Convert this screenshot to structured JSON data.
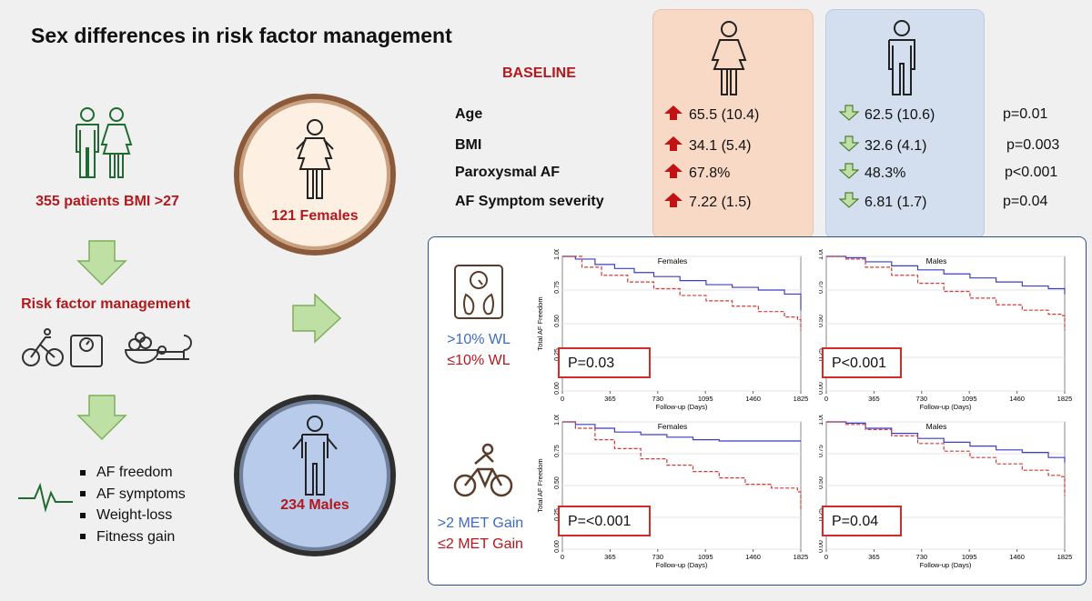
{
  "title": "Sex differences in risk factor management",
  "baseline_label": "BASELINE",
  "left_flow": {
    "patients": "355 patients BMI >27",
    "rfm": "Risk factor management",
    "outcomes": [
      "AF freedom",
      "AF symptoms",
      "Weight-loss",
      "Fitness gain"
    ]
  },
  "groups": {
    "females": "121 Females",
    "males": "234 Males"
  },
  "baseline_rows": [
    {
      "label": "Age",
      "female": "65.5 (10.4)",
      "male": "62.5 (10.6)",
      "p": "p=0.01"
    },
    {
      "label": "BMI",
      "female": "34.1 (5.4)",
      "male": "32.6 (4.1)",
      "p": "p=0.003"
    },
    {
      "label": "Paroxysmal AF",
      "female": "67.8%",
      "male": "48.3%",
      "p": "p<0.001"
    },
    {
      "label": "AF Symptom severity",
      "female": "7.22 (1.5)",
      "male": "6.81 (1.7)",
      "p": "p=0.04"
    }
  ],
  "legend_wl": {
    "high": ">10% WL",
    "low": "≤10% WL"
  },
  "legend_met": {
    "high": ">2 MET Gain",
    "low": "≤2 MET Gain"
  },
  "colors": {
    "accent_red": "#b3181d",
    "accent_blue": "#3d6cbf",
    "female_panel": "#f8d9c6",
    "male_panel": "#d3deef",
    "arrow_green": "#bfe0a4"
  },
  "chart_data": [
    {
      "type": "line",
      "title": "Females",
      "xlabel": "Follow-up (Days)",
      "ylabel": "Total AF Freedom",
      "x_ticks": [
        0,
        365,
        730,
        1095,
        1460,
        1825
      ],
      "y_ticks": [
        "0.00",
        "0.25",
        "0.50",
        "0.75",
        "1.00"
      ],
      "xlim": [
        0,
        1825
      ],
      "ylim": [
        0,
        1
      ],
      "annotation": "P=0.03",
      "series": [
        {
          "name": ">10% WL",
          "x": [
            0,
            100,
            250,
            400,
            550,
            700,
            900,
            1100,
            1300,
            1500,
            1700,
            1800,
            1825
          ],
          "y": [
            1.0,
            0.98,
            0.94,
            0.91,
            0.88,
            0.85,
            0.82,
            0.79,
            0.77,
            0.75,
            0.72,
            0.72,
            0.6
          ]
        },
        {
          "name": "≤10% WL",
          "x": [
            0,
            150,
            300,
            500,
            700,
            900,
            1100,
            1300,
            1500,
            1700,
            1800,
            1825
          ],
          "y": [
            1.0,
            0.92,
            0.86,
            0.81,
            0.76,
            0.71,
            0.67,
            0.63,
            0.59,
            0.55,
            0.53,
            0.45
          ]
        }
      ]
    },
    {
      "type": "line",
      "title": "Males",
      "xlabel": "Follow-up (Days)",
      "ylabel": "",
      "x_ticks": [
        0,
        365,
        730,
        1095,
        1460,
        1825
      ],
      "y_ticks": [
        "0.00",
        "0.25",
        "0.50",
        "0.75",
        "1.00"
      ],
      "xlim": [
        0,
        1825
      ],
      "ylim": [
        0,
        1
      ],
      "annotation": "P<0.001",
      "series": [
        {
          "name": ">10% WL",
          "x": [
            0,
            150,
            300,
            500,
            700,
            900,
            1100,
            1300,
            1500,
            1700,
            1800,
            1825
          ],
          "y": [
            1.0,
            0.99,
            0.96,
            0.93,
            0.9,
            0.87,
            0.84,
            0.81,
            0.78,
            0.76,
            0.76,
            0.72
          ]
        },
        {
          "name": "≤10% WL",
          "x": [
            0,
            150,
            300,
            500,
            700,
            900,
            1100,
            1300,
            1500,
            1700,
            1800,
            1825
          ],
          "y": [
            1.0,
            0.98,
            0.92,
            0.86,
            0.8,
            0.74,
            0.69,
            0.64,
            0.6,
            0.57,
            0.56,
            0.45
          ]
        }
      ]
    },
    {
      "type": "line",
      "title": "Females",
      "xlabel": "Follow-up (Days)",
      "ylabel": "Total AF Freedom",
      "x_ticks": [
        0,
        365,
        730,
        1095,
        1460,
        1825
      ],
      "y_ticks": [
        "0.00",
        "0.25",
        "0.50",
        "0.75",
        "1.00"
      ],
      "xlim": [
        0,
        1825
      ],
      "ylim": [
        0,
        1
      ],
      "annotation": "P=<0.001",
      "series": [
        {
          "name": ">2 MET Gain",
          "x": [
            0,
            100,
            250,
            400,
            600,
            800,
            1000,
            1200,
            1825
          ],
          "y": [
            1.0,
            0.98,
            0.95,
            0.92,
            0.9,
            0.88,
            0.86,
            0.85,
            0.85
          ]
        },
        {
          "name": "≤2 MET Gain",
          "x": [
            0,
            100,
            250,
            400,
            600,
            800,
            1000,
            1200,
            1400,
            1600,
            1800,
            1825
          ],
          "y": [
            1.0,
            0.95,
            0.86,
            0.79,
            0.71,
            0.66,
            0.61,
            0.56,
            0.51,
            0.48,
            0.45,
            0.3
          ]
        }
      ]
    },
    {
      "type": "line",
      "title": "Males",
      "xlabel": "Follow-up (Days)",
      "ylabel": "",
      "x_ticks": [
        0,
        365,
        730,
        1095,
        1460,
        1825
      ],
      "y_ticks": [
        "0.00",
        "0.25",
        "0.50",
        "0.75",
        "1.00"
      ],
      "xlim": [
        0,
        1825
      ],
      "ylim": [
        0,
        1
      ],
      "annotation": "P=0.04",
      "series": [
        {
          "name": ">2 MET Gain",
          "x": [
            0,
            150,
            300,
            500,
            700,
            900,
            1100,
            1300,
            1500,
            1700,
            1800,
            1825
          ],
          "y": [
            1.0,
            0.99,
            0.95,
            0.91,
            0.87,
            0.84,
            0.81,
            0.78,
            0.76,
            0.72,
            0.72,
            0.68
          ]
        },
        {
          "name": "≤2 MET Gain",
          "x": [
            0,
            150,
            300,
            500,
            700,
            900,
            1100,
            1300,
            1500,
            1700,
            1800,
            1825
          ],
          "y": [
            1.0,
            0.98,
            0.94,
            0.89,
            0.83,
            0.77,
            0.72,
            0.67,
            0.62,
            0.58,
            0.57,
            0.42
          ]
        }
      ]
    }
  ]
}
